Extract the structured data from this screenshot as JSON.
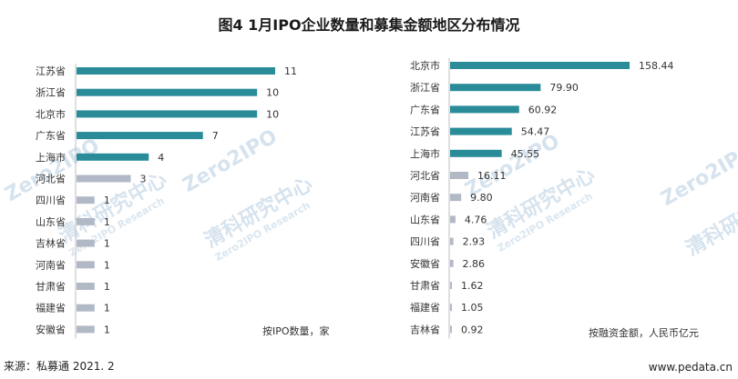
{
  "title": "图4  1月IPO企业数量和募集金额地区分布情况",
  "source": "来源：私募通  2021. 2",
  "website": "www.pedata.cn",
  "watermark": {
    "brand": "Zero2IPO",
    "cn": "清科研究中心",
    "en": "Zero2IPO Research"
  },
  "colors": {
    "primary": "#2a8c99",
    "secondary": "#b2b9c6",
    "axis": "#bfbfbf"
  },
  "chart_data": [
    {
      "type": "bar",
      "orientation": "horizontal",
      "note": "按IPO数量，家",
      "categories": [
        "江苏省",
        "浙江省",
        "北京市",
        "广东省",
        "上海市",
        "河北省",
        "四川省",
        "山东省",
        "吉林省",
        "河南省",
        "甘肃省",
        "福建省",
        "安徽省"
      ],
      "values": [
        11,
        10,
        10,
        7,
        4,
        3,
        1,
        1,
        1,
        1,
        1,
        1,
        1
      ],
      "labels": [
        "11",
        "10",
        "10",
        "7",
        "4",
        "3",
        "1",
        "1",
        "1",
        "1",
        "1",
        "1",
        "1"
      ],
      "highlight_count": 5
    },
    {
      "type": "bar",
      "orientation": "horizontal",
      "note": "按融资金额，人民币亿元",
      "categories": [
        "北京市",
        "浙江省",
        "广东省",
        "江苏省",
        "上海市",
        "河北省",
        "河南省",
        "山东省",
        "四川省",
        "安徽省",
        "甘肃省",
        "福建省",
        "吉林省"
      ],
      "values": [
        158.44,
        79.9,
        60.92,
        54.47,
        45.55,
        16.11,
        9.8,
        4.76,
        2.93,
        2.86,
        1.62,
        1.05,
        0.92
      ],
      "labels": [
        "158.44",
        "79.90",
        "60.92",
        "54.47",
        "45.55",
        "16.11",
        "9.80",
        "4.76",
        "2.93",
        "2.86",
        "1.62",
        "1.05",
        "0.92"
      ],
      "highlight_count": 5
    }
  ]
}
